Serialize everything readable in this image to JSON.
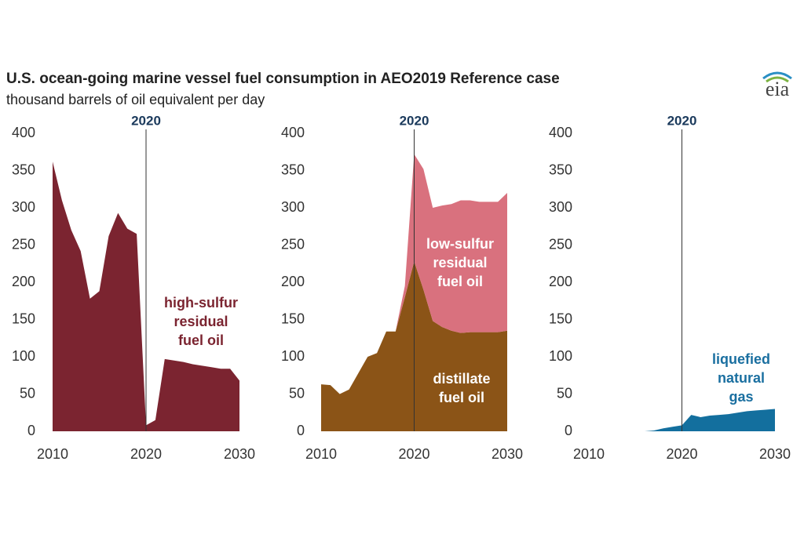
{
  "title": "U.S. ocean-going marine vessel fuel consumption in AEO2019 Reference case",
  "subtitle": "thousand barrels of oil equivalent per day",
  "logo": "eia",
  "chart_data": [
    {
      "type": "area",
      "x": [
        2010,
        2011,
        2012,
        2013,
        2014,
        2015,
        2016,
        2017,
        2018,
        2019,
        2020,
        2021,
        2022,
        2023,
        2024,
        2025,
        2026,
        2027,
        2028,
        2029,
        2030
      ],
      "series": [
        {
          "name": "high-sulfur\nresidual\nfuel oil",
          "color": "#7b2430",
          "values": [
            362,
            310,
            270,
            242,
            178,
            188,
            262,
            293,
            272,
            265,
            8,
            15,
            97,
            95,
            93,
            90,
            88,
            86,
            84,
            84,
            68
          ]
        }
      ],
      "xlim": [
        2010,
        2030
      ],
      "xticks": [
        2010,
        2020,
        2030
      ],
      "ylim": [
        0,
        400
      ],
      "yticks": [
        0,
        50,
        100,
        150,
        200,
        250,
        300,
        350,
        400
      ],
      "vline": 2020,
      "grid": false
    },
    {
      "type": "area",
      "stacked": true,
      "x": [
        2010,
        2011,
        2012,
        2013,
        2014,
        2015,
        2016,
        2017,
        2018,
        2019,
        2020,
        2021,
        2022,
        2023,
        2024,
        2025,
        2026,
        2027,
        2028,
        2029,
        2030
      ],
      "series": [
        {
          "name": "distillate\nfuel oil",
          "color": "#8b5417",
          "values": [
            63,
            62,
            50,
            56,
            78,
            100,
            105,
            134,
            134,
            180,
            228,
            190,
            148,
            140,
            135,
            132,
            133,
            133,
            133,
            133,
            135
          ]
        },
        {
          "name": "low-sulfur\nresidual\nfuel oil",
          "color": "#d9717e",
          "values": [
            0,
            0,
            0,
            0,
            0,
            0,
            0,
            0,
            0,
            15,
            144,
            162,
            152,
            163,
            170,
            178,
            177,
            175,
            175,
            175,
            185
          ]
        }
      ],
      "xlim": [
        2010,
        2030
      ],
      "xticks": [
        2010,
        2020,
        2030
      ],
      "ylim": [
        0,
        400
      ],
      "yticks": [
        0,
        50,
        100,
        150,
        200,
        250,
        300,
        350,
        400
      ],
      "vline": 2020,
      "grid": false
    },
    {
      "type": "area",
      "x": [
        2010,
        2011,
        2012,
        2013,
        2014,
        2015,
        2016,
        2017,
        2018,
        2019,
        2020,
        2021,
        2022,
        2023,
        2024,
        2025,
        2026,
        2027,
        2028,
        2029,
        2030
      ],
      "series": [
        {
          "name": "liquefied\nnatural gas",
          "color": "#136f9e",
          "values": [
            0,
            0,
            0,
            0,
            0,
            0,
            0,
            1,
            4,
            6,
            8,
            22,
            19,
            21,
            22,
            23,
            25,
            27,
            28,
            29,
            30
          ]
        }
      ],
      "xlim": [
        2010,
        2030
      ],
      "xticks": [
        2010,
        2020,
        2030
      ],
      "ylim": [
        0,
        400
      ],
      "yticks": [
        0,
        50,
        100,
        150,
        200,
        250,
        300,
        350,
        400
      ],
      "vline": 2020,
      "grid": false
    }
  ]
}
